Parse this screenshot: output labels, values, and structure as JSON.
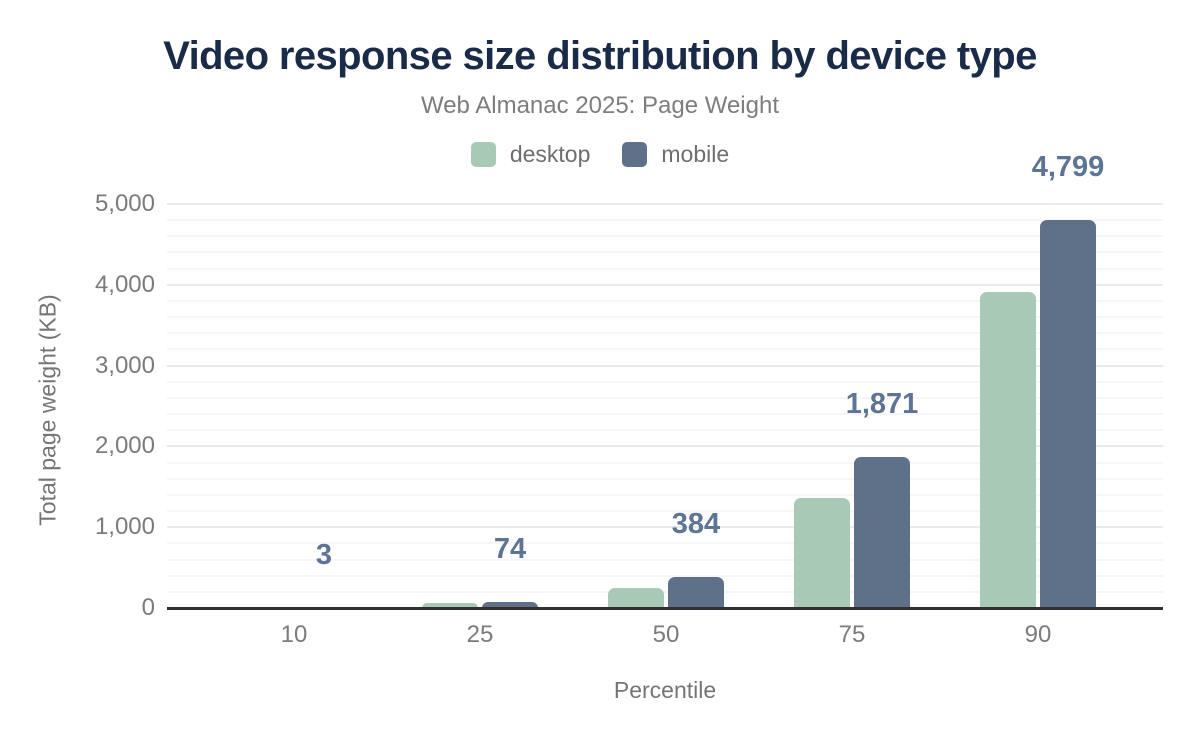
{
  "title": "Video response size distribution by device type",
  "subtitle": "Web Almanac 2025: Page Weight",
  "legend": {
    "items": [
      {
        "label": "desktop",
        "color": "#a7c9b6"
      },
      {
        "label": "mobile",
        "color": "#5f7189"
      }
    ]
  },
  "chart_data": {
    "type": "bar",
    "title": "Video response size distribution by device type",
    "subtitle": "Web Almanac 2025: Page Weight",
    "categories": [
      "10",
      "25",
      "50",
      "75",
      "90"
    ],
    "series": [
      {
        "name": "desktop",
        "color": "#a7c9b6",
        "values": [
          1,
          57,
          250,
          1360,
          3910
        ]
      },
      {
        "name": "mobile",
        "color": "#5f7189",
        "values": [
          3,
          74,
          384,
          1871,
          4799
        ],
        "data_labels": [
          "3",
          "74",
          "384",
          "1,871",
          "4,799"
        ]
      }
    ],
    "xlabel": "Percentile",
    "ylabel": "Total page weight (KB)",
    "ylim": [
      0,
      5000
    ],
    "y_ticks": [
      {
        "value": 0,
        "label": "0"
      },
      {
        "value": 1000,
        "label": "1,000"
      },
      {
        "value": 2000,
        "label": "2,000"
      },
      {
        "value": 3000,
        "label": "3,000"
      },
      {
        "value": 4000,
        "label": "4,000"
      },
      {
        "value": 5000,
        "label": "5,000"
      }
    ],
    "minor_grid_step": 200,
    "grid": true,
    "legend_position": "top",
    "data_label_color": "#5d7495"
  },
  "colors": {
    "title": "#1a2b49",
    "subtitle": "#7d7d7d",
    "legend_text": "#6e6e6e",
    "tick_text": "#7b7b7b",
    "axis_title_text": "#757575",
    "axis_line": "#303030",
    "grid_major": "#ebebeb",
    "grid_minor": "#f6f6f6",
    "background": "#ffffff"
  }
}
